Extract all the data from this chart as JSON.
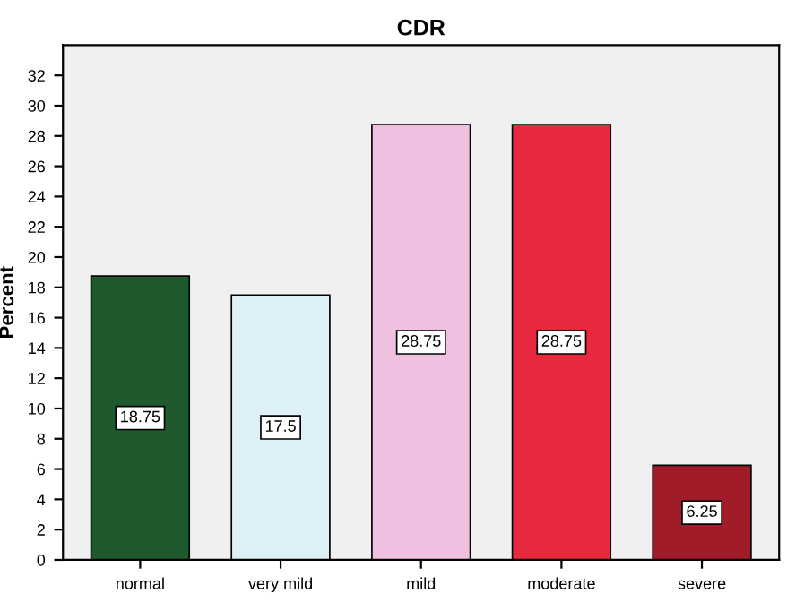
{
  "chart_data": {
    "type": "bar",
    "title": "CDR",
    "ylabel": "Percent",
    "categories": [
      "normal",
      "very mild",
      "mild",
      "moderate",
      "severe"
    ],
    "values": [
      18.75,
      17.5,
      28.75,
      28.75,
      6.25
    ],
    "colors": [
      "#1e5a2e",
      "#dcf0f5",
      "#f0c0e0",
      "#e8283c",
      "#a01c28"
    ],
    "ylim": [
      0,
      34
    ],
    "yticks": [
      0,
      2,
      4,
      6,
      8,
      10,
      12,
      14,
      16,
      18,
      20,
      22,
      24,
      26,
      28,
      30,
      32
    ],
    "grid": false,
    "data_labels": true
  }
}
